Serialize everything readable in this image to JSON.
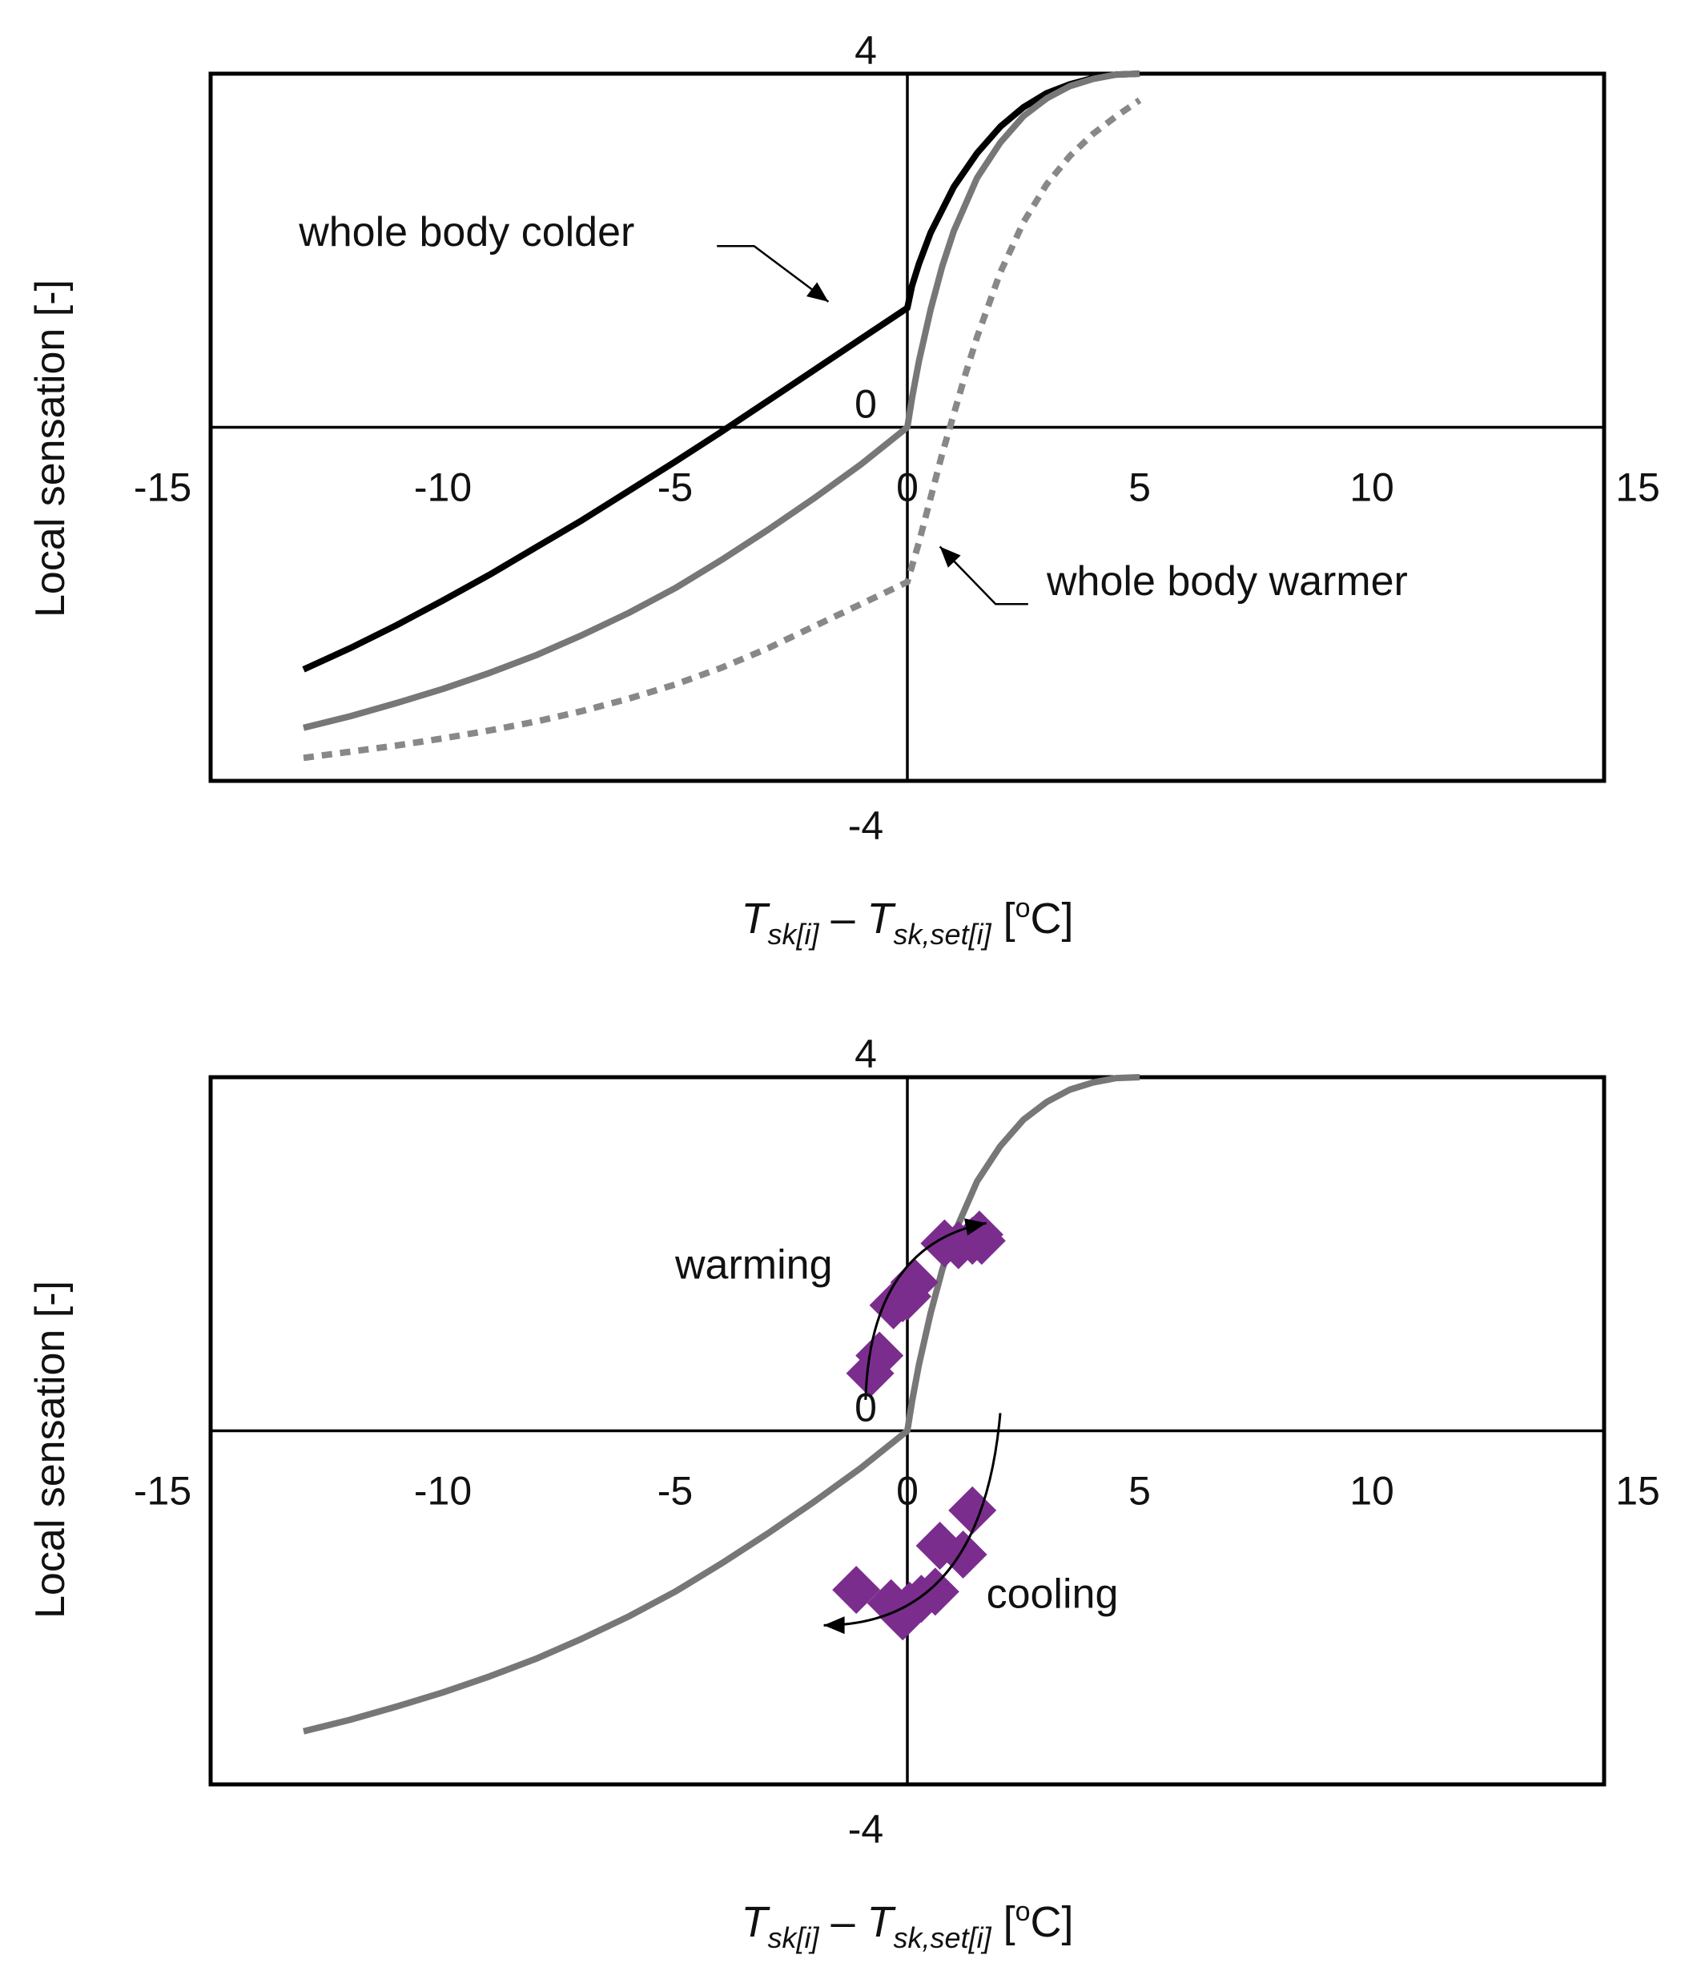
{
  "chart_data": [
    {
      "type": "line",
      "panel": "top",
      "ylabel": "Local sensation [-]",
      "xlabel": {
        "T1": "T",
        "sub1": "sk[i]",
        "dash": " – ",
        "T2": "T",
        "sub2": "sk,set[i]",
        "unit_open": " [",
        "deg": "o",
        "unit_close": "C]"
      },
      "xlim": [
        -15,
        15
      ],
      "ylim": [
        -4,
        4
      ],
      "x_ticks": [
        -15,
        -10,
        -5,
        0,
        5,
        10,
        15
      ],
      "x_tick_labels": [
        "-15",
        "-10",
        "-5",
        "0",
        "5",
        "10",
        "15"
      ],
      "y_tick_labels": {
        "top": "4",
        "zero": "0",
        "bottom": "-4"
      },
      "grid": false,
      "series": [
        {
          "style": "solid",
          "color": "#000000",
          "x": [
            -13.0,
            -12.0,
            -11.0,
            -10.0,
            -9.0,
            -8.0,
            -7.0,
            -6.0,
            -5.0,
            -4.0,
            -3.0,
            -2.0,
            -1.0,
            0.0,
            0.1,
            0.25,
            0.5,
            1.0,
            1.5,
            2.0,
            2.5,
            3.0,
            3.5,
            4.0,
            4.5,
            5.0
          ],
          "y": [
            -2.74,
            -2.5,
            -2.24,
            -1.96,
            -1.67,
            -1.36,
            -1.05,
            -0.72,
            -0.39,
            -0.05,
            0.3,
            0.65,
            1.0,
            1.35,
            1.6,
            1.85,
            2.2,
            2.72,
            3.1,
            3.4,
            3.62,
            3.78,
            3.88,
            3.95,
            3.99,
            4.0
          ]
        },
        {
          "style": "solid",
          "color": "#777777",
          "x": [
            -13.0,
            -12.0,
            -11.0,
            -10.0,
            -9.0,
            -8.0,
            -7.0,
            -6.0,
            -5.0,
            -4.0,
            -3.0,
            -2.0,
            -1.0,
            0.0,
            0.1,
            0.25,
            0.5,
            0.75,
            1.0,
            1.5,
            2.0,
            2.5,
            3.0,
            3.5,
            4.0,
            4.5,
            5.0
          ],
          "y": [
            -3.4,
            -3.27,
            -3.12,
            -2.96,
            -2.78,
            -2.58,
            -2.35,
            -2.1,
            -1.82,
            -1.5,
            -1.16,
            -0.8,
            -0.42,
            0.0,
            0.33,
            0.75,
            1.33,
            1.82,
            2.22,
            2.82,
            3.22,
            3.52,
            3.72,
            3.86,
            3.94,
            3.99,
            4.0
          ]
        },
        {
          "style": "dotted",
          "color": "#888888",
          "x": [
            -13.0,
            -12.0,
            -11.0,
            -10.0,
            -9.0,
            -8.0,
            -7.0,
            -6.0,
            -5.0,
            -4.0,
            -3.0,
            -2.0,
            -1.0,
            0.0,
            0.25,
            0.5,
            0.75,
            1.0,
            1.25,
            1.5,
            2.0,
            2.5,
            3.0,
            3.5,
            4.0,
            4.5,
            5.0
          ],
          "y": [
            -3.74,
            -3.67,
            -3.6,
            -3.52,
            -3.43,
            -3.33,
            -3.21,
            -3.07,
            -2.91,
            -2.72,
            -2.5,
            -2.25,
            -2.0,
            -1.75,
            -1.3,
            -0.8,
            -0.3,
            0.15,
            0.6,
            1.02,
            1.75,
            2.32,
            2.75,
            3.07,
            3.32,
            3.52,
            3.7
          ]
        }
      ],
      "annotations": [
        {
          "text": "whole body colder",
          "x": -13.1,
          "y": 2.05,
          "points_to": [
            -1.7,
            1.42
          ]
        },
        {
          "text": "whole body warmer",
          "x": 3.0,
          "y": -1.9,
          "points_to": [
            0.7,
            -1.35
          ]
        }
      ]
    },
    {
      "type": "scatter",
      "panel": "bottom",
      "ylabel": "Local sensation [-]",
      "xlabel": {
        "T1": "T",
        "sub1": "sk[i]",
        "dash": " – ",
        "T2": "T",
        "sub2": "sk,set[i]",
        "unit_open": " [",
        "deg": "o",
        "unit_close": "C]"
      },
      "xlim": [
        -15,
        15
      ],
      "ylim": [
        -4,
        4
      ],
      "x_ticks": [
        -15,
        -10,
        -5,
        0,
        5,
        10,
        15
      ],
      "x_tick_labels": [
        "-15",
        "-10",
        "-5",
        "0",
        "5",
        "10",
        "15"
      ],
      "y_tick_labels": {
        "top": "4",
        "zero": "0",
        "bottom": "-4"
      },
      "grid": false,
      "curve": {
        "style": "solid",
        "color": "#777777",
        "x": [
          -13.0,
          -12.0,
          -11.0,
          -10.0,
          -9.0,
          -8.0,
          -7.0,
          -6.0,
          -5.0,
          -4.0,
          -3.0,
          -2.0,
          -1.0,
          0.0,
          0.1,
          0.25,
          0.5,
          0.75,
          1.0,
          1.5,
          2.0,
          2.5,
          3.0,
          3.5,
          4.0,
          4.5,
          5.0
        ],
        "y": [
          -3.4,
          -3.27,
          -3.12,
          -2.96,
          -2.78,
          -2.58,
          -2.35,
          -2.1,
          -1.82,
          -1.5,
          -1.16,
          -0.8,
          -0.42,
          0.0,
          0.33,
          0.75,
          1.33,
          1.82,
          2.22,
          2.82,
          3.22,
          3.52,
          3.72,
          3.86,
          3.94,
          3.99,
          4.0
        ]
      },
      "points": {
        "color": "#7b2d8e",
        "warming": {
          "x": [
            -0.8,
            -0.6,
            -0.3,
            -0.1,
            0.0,
            0.15,
            0.8,
            1.1,
            1.4,
            1.55,
            1.6
          ],
          "y": [
            0.65,
            0.85,
            1.42,
            1.5,
            1.52,
            1.68,
            2.12,
            2.1,
            2.15,
            2.22,
            2.15
          ]
        },
        "cooling": {
          "x": [
            -1.1,
            -0.35,
            -0.1,
            0.05,
            0.3,
            0.6,
            0.7,
            1.2,
            1.4
          ],
          "y": [
            -1.8,
            -1.95,
            -2.1,
            -1.98,
            -1.9,
            -1.82,
            -1.3,
            -1.4,
            -0.9
          ]
        }
      },
      "annotations": [
        {
          "text": "warming",
          "x": -5.0,
          "y": 1.72
        },
        {
          "text": "cooling",
          "x": 1.7,
          "y": -2.0
        }
      ]
    }
  ],
  "colors": {
    "axis": "#000000",
    "curve_gray": "#777777",
    "dotted_gray": "#888888",
    "points": "#7b2d8e"
  }
}
